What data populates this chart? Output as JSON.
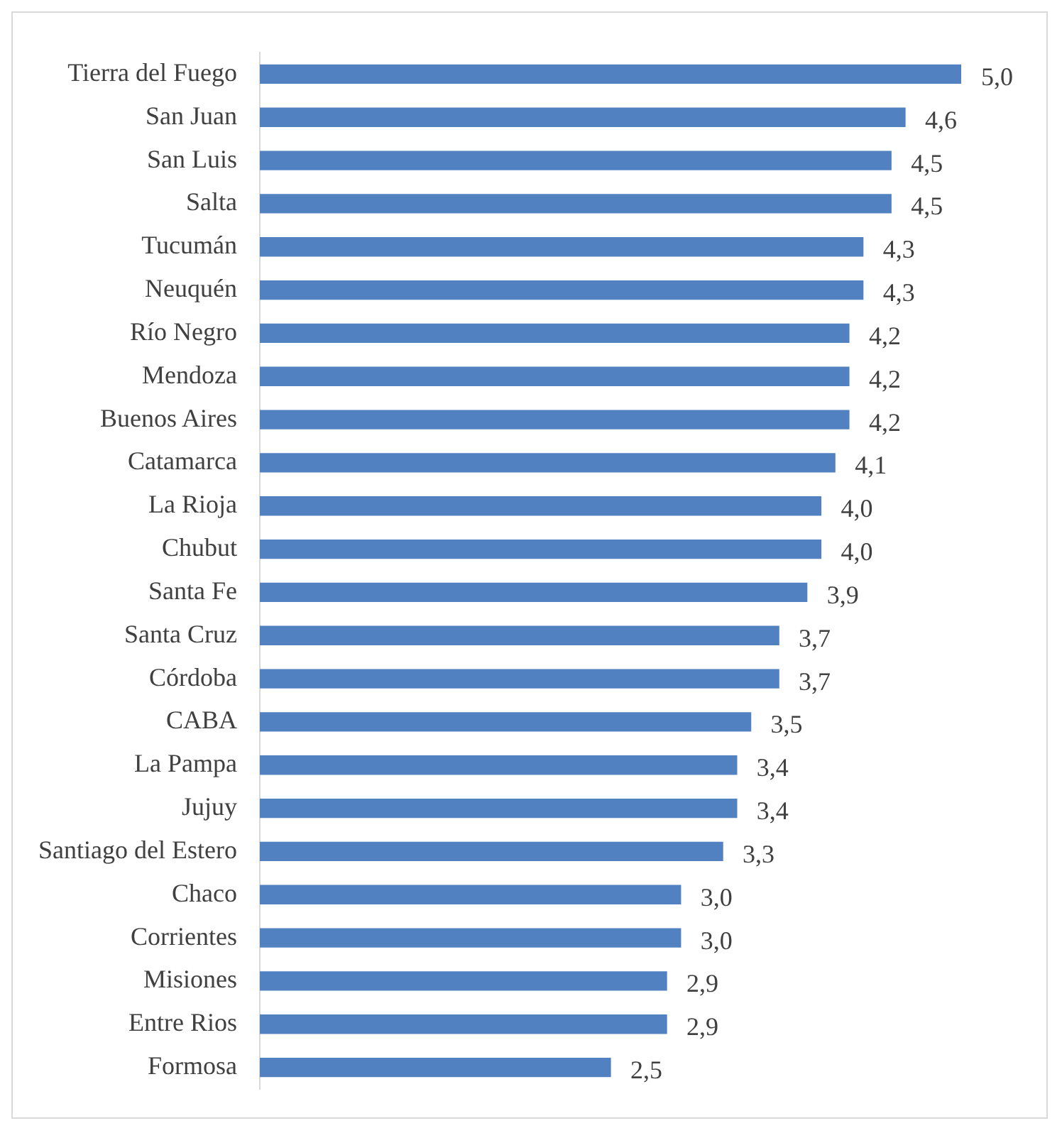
{
  "chart_data": {
    "type": "bar",
    "orientation": "horizontal",
    "categories": [
      "Tierra del Fuego",
      "San Juan",
      "San Luis",
      "Salta",
      "Tucumán",
      "Neuquén",
      "Río Negro",
      "Mendoza",
      "Buenos Aires",
      "Catamarca",
      "La Rioja",
      "Chubut",
      "Santa Fe",
      "Santa Cruz",
      "Córdoba",
      "CABA",
      "La Pampa",
      "Jujuy",
      "Santiago del Estero",
      "Chaco",
      "Corrientes",
      "Misiones",
      "Entre Rios",
      "Formosa"
    ],
    "values": [
      5.0,
      4.6,
      4.5,
      4.5,
      4.3,
      4.3,
      4.2,
      4.2,
      4.2,
      4.1,
      4.0,
      4.0,
      3.9,
      3.7,
      3.7,
      3.5,
      3.4,
      3.4,
      3.3,
      3.0,
      3.0,
      2.9,
      2.9,
      2.5
    ],
    "value_labels": [
      "5,0",
      "4,6",
      "4,5",
      "4,5",
      "4,3",
      "4,3",
      "4,2",
      "4,2",
      "4,2",
      "4,1",
      "4,0",
      "4,0",
      "3,9",
      "3,7",
      "3,7",
      "3,5",
      "3,4",
      "3,4",
      "3,3",
      "3,0",
      "3,0",
      "2,9",
      "2,9",
      "2,5"
    ],
    "color": "#5181c0",
    "tick_labels": "y",
    "grid": false,
    "legend": false
  }
}
